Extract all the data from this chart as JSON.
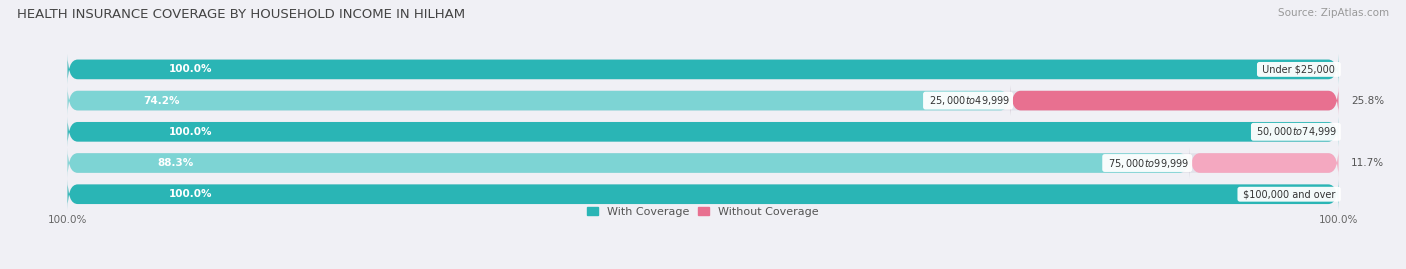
{
  "title": "HEALTH INSURANCE COVERAGE BY HOUSEHOLD INCOME IN HILHAM",
  "source": "Source: ZipAtlas.com",
  "categories": [
    "Under $25,000",
    "$25,000 to $49,999",
    "$50,000 to $74,999",
    "$75,000 to $99,999",
    "$100,000 and over"
  ],
  "with_coverage": [
    100.0,
    74.2,
    100.0,
    88.3,
    100.0
  ],
  "without_coverage": [
    0.0,
    25.8,
    0.0,
    11.7,
    0.0
  ],
  "color_with_full": "#2ab5b5",
  "color_with_partial": "#7dd4d4",
  "color_without_full": "#e87090",
  "color_without_partial": "#f4a8c0",
  "bar_bg": "#e2e2ea",
  "title_fontsize": 9.5,
  "label_fontsize": 7.5,
  "tick_fontsize": 7.5,
  "legend_fontsize": 8,
  "source_fontsize": 7.5,
  "pct_label_fontsize": 7.5
}
